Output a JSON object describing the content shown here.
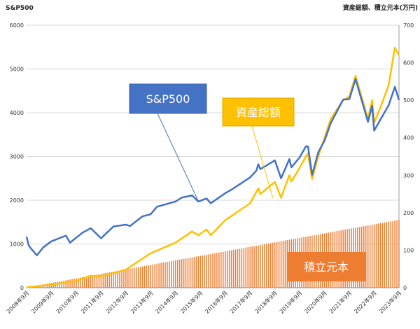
{
  "chart_data": {
    "type": "line",
    "left_axis_title": "S&P500",
    "right_axis_title": "資産総額、積立元本(万円)",
    "left_ylim": [
      0,
      6000
    ],
    "left_yticks": [
      0,
      1000,
      2000,
      3000,
      4000,
      5000,
      6000
    ],
    "right_ylim": [
      0,
      700
    ],
    "right_yticks": [
      0,
      100,
      200,
      300,
      400,
      500,
      600,
      700
    ],
    "x_start": "2008-09",
    "x_end": "2023-09",
    "x_tick_labels": [
      "2008年9月",
      "2009年9月",
      "2010年9月",
      "2011年9月",
      "2012年9月",
      "2013年9月",
      "2014年9月",
      "2015年9月",
      "2016年9月",
      "2017年9月",
      "2018年9月",
      "2019年9月",
      "2020年9月",
      "2021年9月",
      "2022年9月",
      "2023年9月"
    ],
    "grid": "horizontal",
    "colors": {
      "sp500": "#4472c4",
      "asset": "#ffc000",
      "principal": "#ed7d31",
      "grid": "#d9d9d9"
    },
    "series": [
      {
        "name": "S&P500",
        "axis": "left",
        "anchors": [
          [
            "2008-09",
            1166
          ],
          [
            "2008-10",
            970
          ],
          [
            "2008-11",
            900
          ],
          [
            "2009-02",
            740
          ],
          [
            "2009-05",
            920
          ],
          [
            "2009-09",
            1060
          ],
          [
            "2010-04",
            1190
          ],
          [
            "2010-06",
            1030
          ],
          [
            "2010-12",
            1257
          ],
          [
            "2011-04",
            1360
          ],
          [
            "2011-09",
            1130
          ],
          [
            "2012-03",
            1400
          ],
          [
            "2012-09",
            1440
          ],
          [
            "2012-11",
            1410
          ],
          [
            "2013-05",
            1630
          ],
          [
            "2013-09",
            1680
          ],
          [
            "2013-12",
            1850
          ],
          [
            "2014-09",
            1970
          ],
          [
            "2014-12",
            2060
          ],
          [
            "2015-05",
            2110
          ],
          [
            "2015-08",
            1970
          ],
          [
            "2015-12",
            2040
          ],
          [
            "2016-02",
            1930
          ],
          [
            "2016-09",
            2160
          ],
          [
            "2016-12",
            2240
          ],
          [
            "2017-09",
            2520
          ],
          [
            "2017-12",
            2670
          ],
          [
            "2018-01",
            2820
          ],
          [
            "2018-02",
            2710
          ],
          [
            "2018-09",
            2910
          ],
          [
            "2018-12",
            2500
          ],
          [
            "2019-04",
            2940
          ],
          [
            "2019-05",
            2750
          ],
          [
            "2019-09",
            2980
          ],
          [
            "2019-12",
            3230
          ],
          [
            "2020-01",
            3230
          ],
          [
            "2020-03",
            2580
          ],
          [
            "2020-06",
            3100
          ],
          [
            "2020-09",
            3360
          ],
          [
            "2020-12",
            3760
          ],
          [
            "2021-06",
            4300
          ],
          [
            "2021-09",
            4310
          ],
          [
            "2021-12",
            4770
          ],
          [
            "2022-06",
            3790
          ],
          [
            "2022-08",
            4160
          ],
          [
            "2022-09",
            3590
          ],
          [
            "2022-12",
            3840
          ],
          [
            "2023-04",
            4170
          ],
          [
            "2023-07",
            4590
          ],
          [
            "2023-09",
            4290
          ]
        ]
      },
      {
        "name": "資産総額",
        "axis": "right",
        "anchors": [
          [
            "2008-09",
            1
          ],
          [
            "2009-09",
            8
          ],
          [
            "2010-09",
            18
          ],
          [
            "2011-04",
            32
          ],
          [
            "2011-09",
            30
          ],
          [
            "2012-09",
            48
          ],
          [
            "2013-09",
            92
          ],
          [
            "2014-09",
            120
          ],
          [
            "2015-05",
            150
          ],
          [
            "2015-08",
            140
          ],
          [
            "2015-12",
            155
          ],
          [
            "2016-02",
            140
          ],
          [
            "2016-09",
            180
          ],
          [
            "2017-09",
            225
          ],
          [
            "2018-01",
            265
          ],
          [
            "2018-02",
            250
          ],
          [
            "2018-09",
            282
          ],
          [
            "2018-12",
            240
          ],
          [
            "2019-04",
            300
          ],
          [
            "2019-05",
            283
          ],
          [
            "2019-09",
            320
          ],
          [
            "2019-12",
            350
          ],
          [
            "2020-01",
            358
          ],
          [
            "2020-03",
            290
          ],
          [
            "2020-06",
            350
          ],
          [
            "2020-09",
            400
          ],
          [
            "2020-12",
            450
          ],
          [
            "2021-06",
            500
          ],
          [
            "2021-09",
            510
          ],
          [
            "2021-12",
            565
          ],
          [
            "2022-06",
            450
          ],
          [
            "2022-08",
            500
          ],
          [
            "2022-09",
            440
          ],
          [
            "2022-12",
            480
          ],
          [
            "2023-04",
            540
          ],
          [
            "2023-07",
            640
          ],
          [
            "2023-09",
            620
          ]
        ]
      },
      {
        "name": "積立元本",
        "axis": "right",
        "type": "bar",
        "start": 1,
        "monthly_step": 1,
        "end": 181
      }
    ],
    "annotations": [
      {
        "text": "S&P500",
        "target_date": "2015-08",
        "target_value": 1980,
        "color": "#4472c4"
      },
      {
        "text": "資産総額",
        "target_date": "2018-08",
        "target_value": 240,
        "color": "#ffc000"
      },
      {
        "text": "積立元本",
        "color": "#ed7d31"
      }
    ]
  }
}
